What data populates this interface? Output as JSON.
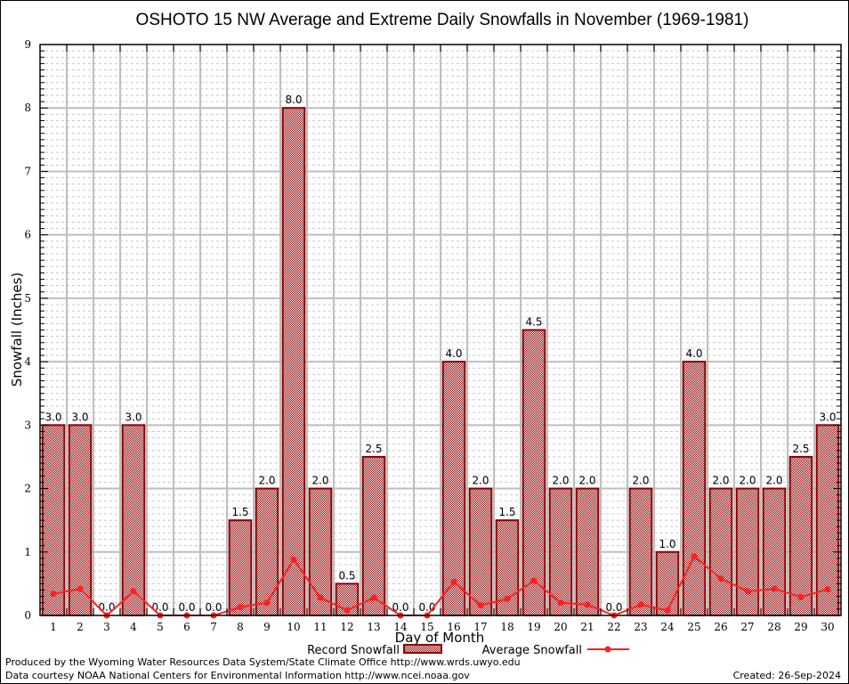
{
  "chart_data": {
    "type": "bar",
    "title": "OSHOTO 15 NW Average and Extreme Daily Snowfalls in November (1969-1981)",
    "xlabel": "Day of Month",
    "ylabel": "Snowfall (Inches)",
    "ylim": [
      0,
      9
    ],
    "yticks": [
      "0",
      "1",
      "2",
      "3",
      "4",
      "5",
      "6",
      "7",
      "8",
      "9"
    ],
    "grid": true,
    "categories": [
      "1",
      "2",
      "3",
      "4",
      "5",
      "6",
      "7",
      "8",
      "9",
      "10",
      "11",
      "12",
      "13",
      "14",
      "15",
      "16",
      "17",
      "18",
      "19",
      "20",
      "21",
      "22",
      "23",
      "24",
      "25",
      "26",
      "27",
      "28",
      "29",
      "30"
    ],
    "series": [
      {
        "name": "Record Snowfall",
        "type": "bar",
        "values": [
          3.0,
          3.0,
          0.0,
          3.0,
          0.0,
          0.0,
          0.0,
          1.5,
          2.0,
          8.0,
          2.0,
          0.5,
          2.5,
          0.0,
          0.0,
          4.0,
          2.0,
          1.5,
          4.5,
          2.0,
          2.0,
          0.0,
          2.0,
          1.0,
          4.0,
          2.0,
          2.0,
          2.0,
          2.5,
          3.0
        ],
        "labels": [
          "3.0",
          "3.0",
          "0.0",
          "3.0",
          "0.0",
          "0.0",
          "0.0",
          "1.5",
          "2.0",
          "8.0",
          "2.0",
          "0.5",
          "2.5",
          "0.0",
          "0.0",
          "4.0",
          "2.0",
          "1.5",
          "4.5",
          "2.0",
          "2.0",
          "0.0",
          "2.0",
          "1.0",
          "4.0",
          "2.0",
          "2.0",
          "2.0",
          "2.5",
          "3.0"
        ],
        "color": "#8b0000"
      },
      {
        "name": "Average Snowfall",
        "type": "line",
        "values": [
          0.34,
          0.42,
          0.0,
          0.38,
          0.0,
          0.0,
          0.0,
          0.13,
          0.2,
          0.88,
          0.28,
          0.08,
          0.28,
          0.0,
          0.0,
          0.53,
          0.16,
          0.26,
          0.55,
          0.2,
          0.17,
          0.0,
          0.17,
          0.08,
          0.93,
          0.58,
          0.38,
          0.42,
          0.29,
          0.41
        ],
        "color": "#ff2020"
      }
    ],
    "legend": {
      "placement": "bottom-center",
      "record_label": "Record Snowfall",
      "average_label": "Average Snowfall"
    }
  },
  "footer": {
    "produced_by": "Produced by the Wyoming Water Resources Data System/State Climate Office http://www.wrds.uwyo.edu",
    "data_courtesy": "Data courtesy NOAA National Centers for Environmental Information http://www.ncei.noaa.gov",
    "created": "Created:  26-Sep-2024"
  }
}
